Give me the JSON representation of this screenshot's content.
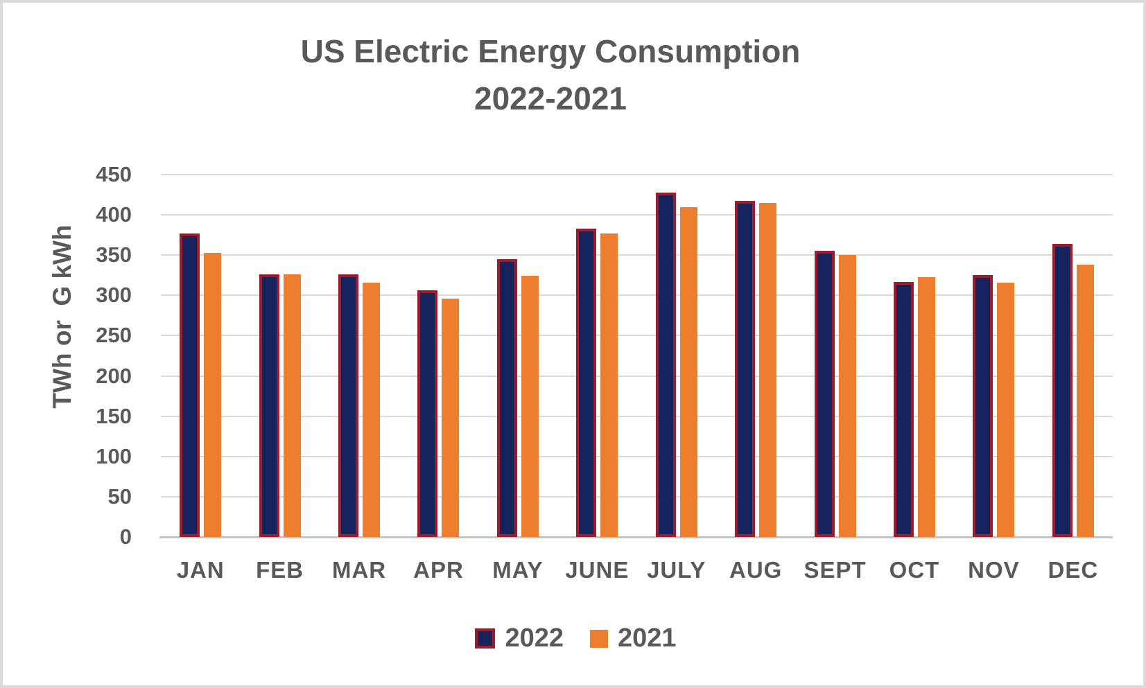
{
  "page": {
    "background": "#ffffff",
    "frame_border_color": "#dcdcdc"
  },
  "chart_data": {
    "type": "bar",
    "title_line1": "US Electric Energy Consumption",
    "title_line2": "2022-2021",
    "ylabel": "TWh or  G kWh",
    "categories": [
      "JAN",
      "FEB",
      "MAR",
      "APR",
      "MAY",
      "JUNE",
      "JULY",
      "AUG",
      "SEPT",
      "OCT",
      "NOV",
      "DEC"
    ],
    "series": [
      {
        "name": "2022",
        "color": "#16245E",
        "border_color": "#9E1B2B",
        "values": [
          377,
          326,
          326,
          306,
          345,
          383,
          428,
          417,
          355,
          317,
          325,
          364
        ]
      },
      {
        "name": "2021",
        "color": "#EC7E2E",
        "border_color": null,
        "values": [
          353,
          326,
          316,
          296,
          324,
          377,
          410,
          415,
          350,
          323,
          316,
          338
        ]
      }
    ],
    "ylim": [
      0,
      450
    ],
    "ytick_step": 50,
    "yticks": [
      450,
      400,
      350,
      300,
      250,
      200,
      150,
      100,
      50,
      0
    ],
    "grid": true,
    "gridline_color": "#D9D9D9",
    "axisline_color": "#C3C3C3",
    "text_color": "#595959",
    "legend_position": "bottom"
  }
}
